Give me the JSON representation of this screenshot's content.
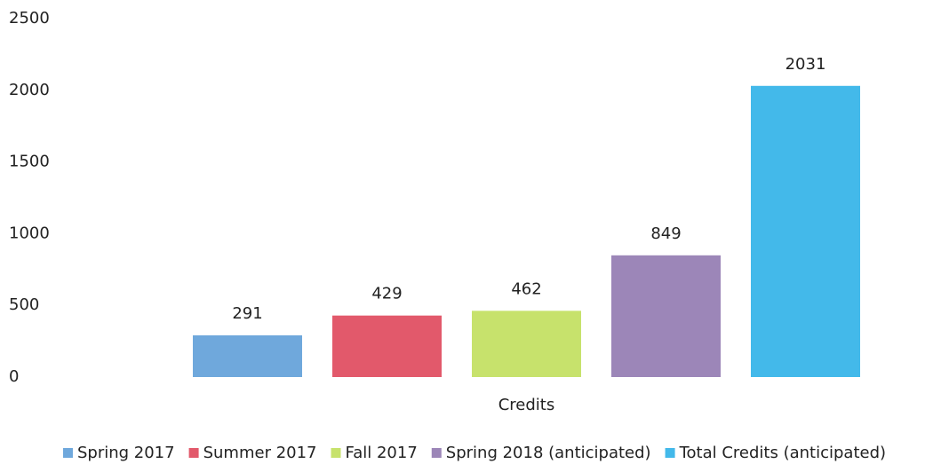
{
  "chart_data": {
    "type": "bar",
    "categories": [
      "Credits"
    ],
    "series": [
      {
        "name": "Spring 2017",
        "color": "#6fa8dc",
        "values": [
          291
        ]
      },
      {
        "name": "Summer 2017",
        "color": "#e2596b",
        "values": [
          429
        ]
      },
      {
        "name": "Fall 2017",
        "color": "#c7e26c",
        "values": [
          462
        ]
      },
      {
        "name": "Spring 2018 (anticipated)",
        "color": "#9c86b8",
        "values": [
          849
        ]
      },
      {
        "name": "Total Credits (anticipated)",
        "color": "#43b9ea",
        "values": [
          2031
        ]
      }
    ],
    "ylim": [
      0,
      2500
    ],
    "yticks": [
      0,
      500,
      1000,
      1500,
      2000,
      2500
    ],
    "grid": false,
    "legend": "bottom"
  }
}
